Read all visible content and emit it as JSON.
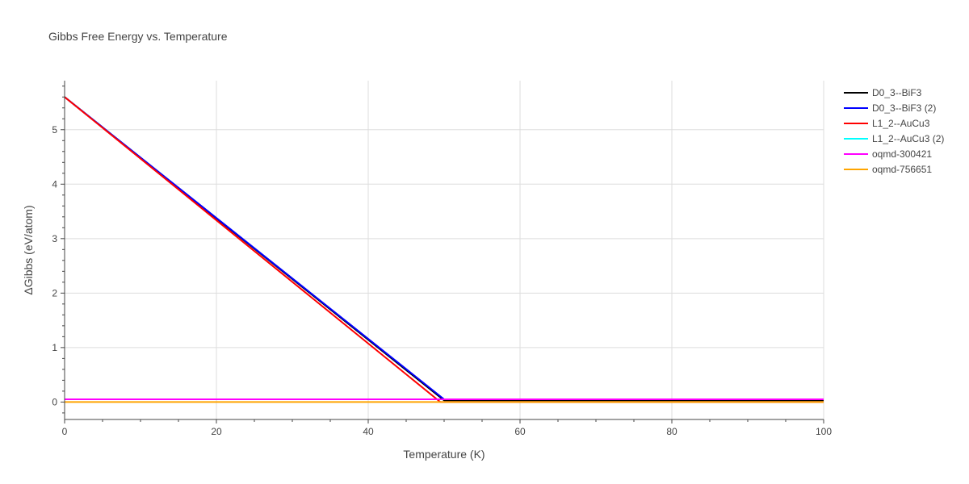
{
  "chart_data": {
    "type": "line",
    "title": "Gibbs Free Energy vs. Temperature",
    "xlabel": "Temperature (K)",
    "ylabel": "ΔGibbs (eV/atom)",
    "xlim": [
      0,
      100
    ],
    "ylim": [
      -0.32,
      5.9
    ],
    "xticks": [
      0,
      20,
      40,
      60,
      80,
      100
    ],
    "yticks": [
      0,
      1,
      2,
      3,
      4,
      5
    ],
    "grid": true,
    "legend_position": "right",
    "series": [
      {
        "name": "D0_3--BiF3",
        "color": "#000000",
        "x": [
          0,
          50,
          100
        ],
        "y": [
          5.6,
          0.03,
          0.03
        ]
      },
      {
        "name": "D0_3--BiF3 (2)",
        "color": "#0000ff",
        "x": [
          0,
          50,
          100
        ],
        "y": [
          5.6,
          0.05,
          0.05
        ]
      },
      {
        "name": "L1_2--AuCu3",
        "color": "#ff0000",
        "x": [
          0,
          49.5,
          100
        ],
        "y": [
          5.6,
          0.0,
          0.0
        ]
      },
      {
        "name": "L1_2--AuCu3 (2)",
        "color": "#00ffff",
        "x": [
          0,
          100
        ],
        "y": [
          0.05,
          0.05
        ]
      },
      {
        "name": "oqmd-300421",
        "color": "#ff00ff",
        "x": [
          0,
          100
        ],
        "y": [
          0.05,
          0.05
        ]
      },
      {
        "name": "oqmd-756651",
        "color": "#ffa500",
        "x": [
          0,
          100
        ],
        "y": [
          0.0,
          0.0
        ]
      }
    ]
  }
}
